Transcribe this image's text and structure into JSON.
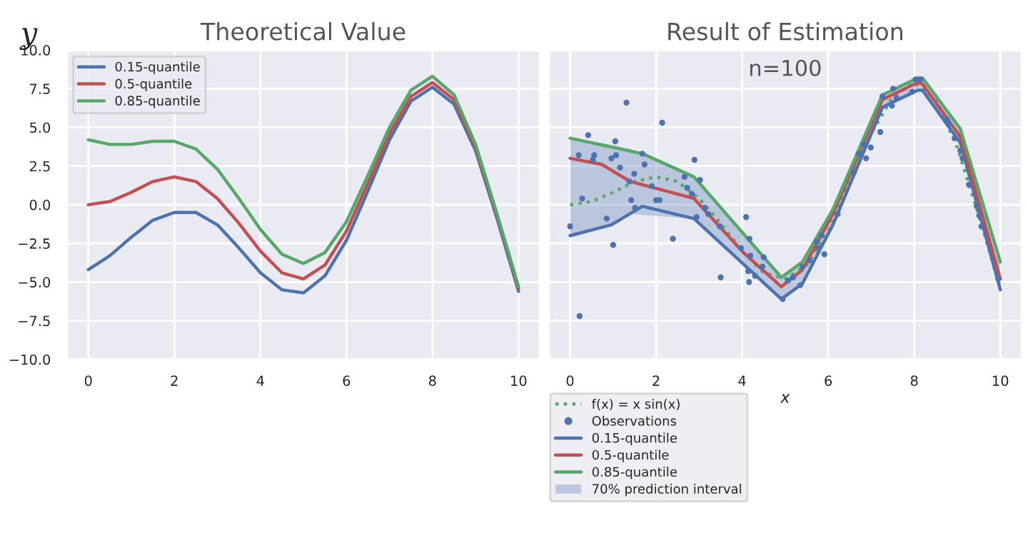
{
  "chart_data": [
    {
      "type": "line",
      "title": "Theoretical Value",
      "ylabel": "y",
      "x": [
        0,
        0.5,
        1,
        1.5,
        2,
        2.5,
        3,
        3.5,
        4,
        4.5,
        5,
        5.5,
        6,
        6.5,
        7,
        7.5,
        8,
        8.5,
        9,
        9.5,
        10
      ],
      "series": [
        {
          "name": "0.15-quantile",
          "color": "#4c72b0",
          "values": [
            -4.2,
            -3.3,
            -2.1,
            -1.0,
            -0.5,
            -0.5,
            -1.3,
            -2.8,
            -4.4,
            -5.5,
            -5.7,
            -4.6,
            -2.3,
            0.9,
            4.2,
            6.7,
            7.6,
            6.5,
            3.5,
            -0.9,
            -5.6
          ]
        },
        {
          "name": "0.5-quantile",
          "color": "#c44e52",
          "values": [
            0,
            0.2,
            0.8,
            1.5,
            1.8,
            1.5,
            0.4,
            -1.2,
            -3.0,
            -4.4,
            -4.8,
            -3.9,
            -1.7,
            1.4,
            4.6,
            7.0,
            7.9,
            6.8,
            3.7,
            -0.7,
            -5.4
          ]
        },
        {
          "name": "0.85-quantile",
          "color": "#55a868",
          "values": [
            4.2,
            3.9,
            3.9,
            4.1,
            4.1,
            3.6,
            2.3,
            0.4,
            -1.6,
            -3.2,
            -3.8,
            -3.1,
            -1.1,
            1.9,
            5.0,
            7.4,
            8.3,
            7.1,
            3.9,
            -0.6,
            -5.3
          ]
        }
      ],
      "xlim": [
        -0.5,
        10.5
      ],
      "xticks": [
        0,
        2,
        4,
        6,
        8,
        10
      ],
      "ylim": [
        -10,
        10
      ],
      "yticks": [
        {
          "value": -10,
          "label": "−10.0"
        },
        {
          "value": -7.5,
          "label": "−7.5"
        },
        {
          "value": -5,
          "label": "−5.0"
        },
        {
          "value": -2.5,
          "label": "−2.5"
        },
        {
          "value": 0,
          "label": "0.0"
        },
        {
          "value": 2.5,
          "label": "2.5"
        },
        {
          "value": 5,
          "label": "5.0"
        },
        {
          "value": 7.5,
          "label": "7.5"
        },
        {
          "value": 10,
          "label": "10.0"
        }
      ],
      "grid": true,
      "legend": "top left"
    },
    {
      "type": "line",
      "title": "Result of Estimation",
      "xlabel": "x",
      "annotations": [
        "n=100",
        "70% prediction interval"
      ],
      "series": [
        {
          "name": "f(x) = x sin(x)",
          "color": "#55a868",
          "line_style": "dotted",
          "x": [
            0,
            0.5,
            1,
            1.5,
            2,
            2.5,
            3,
            3.5,
            4,
            4.5,
            5,
            5.5,
            6,
            6.5,
            7,
            7.5,
            8,
            8.5,
            9,
            9.5,
            10
          ],
          "values": [
            0,
            0.2,
            0.8,
            1.5,
            1.8,
            1.5,
            0.4,
            -1.2,
            -3.0,
            -4.4,
            -4.8,
            -3.9,
            -1.7,
            1.4,
            4.6,
            7.0,
            7.9,
            6.8,
            3.7,
            -0.7,
            -5.4
          ]
        },
        {
          "name": "Observations",
          "type": "scatter",
          "color": "#4c72b0",
          "marker": "circle",
          "x": [
            0,
            0.2,
            0.22,
            0.28,
            0.42,
            0.53,
            0.56,
            0.85,
            0.96,
            1.0,
            1.05,
            1.07,
            1.16,
            1.31,
            1.38,
            1.42,
            1.49,
            1.51,
            1.68,
            1.73,
            1.9,
            2.0,
            2.08,
            2.14,
            2.39,
            2.66,
            2.72,
            2.83,
            2.89,
            2.94,
            3.02,
            3.13,
            3.21,
            3.48,
            3.5,
            3.97,
            4.09,
            4.14,
            4.16,
            4.17,
            4.19,
            4.3,
            4.47,
            4.5,
            4.94,
            5.07,
            5.18,
            5.35,
            5.4,
            5.56,
            5.73,
            5.78,
            5.84,
            5.91,
            6.22,
            6.6,
            6.71,
            6.82,
            6.88,
            6.99,
            7.21,
            7.26,
            7.48,
            7.51,
            7.59,
            7.95,
            8.03,
            8.14,
            8.76,
            8.8,
            8.94,
            9.07,
            9.12,
            9.27,
            9.45,
            9.51,
            9.56,
            9.95
          ],
          "values": [
            -1.4,
            3.2,
            -7.2,
            0.4,
            4.5,
            2.9,
            3.2,
            -0.9,
            3.0,
            -2.6,
            4.1,
            3.2,
            2.4,
            6.6,
            1.5,
            0.3,
            2.0,
            -0.2,
            3.3,
            2.6,
            1.2,
            0.3,
            0.3,
            5.3,
            -2.2,
            1.8,
            1.1,
            0.7,
            2.9,
            -0.8,
            1.6,
            -0.2,
            -0.6,
            -1.4,
            -4.7,
            -2.8,
            -0.8,
            -4.3,
            -5.0,
            -2.2,
            -3.3,
            -4.6,
            -4.0,
            -3.4,
            -6.1,
            -4.9,
            -4.7,
            -5.2,
            -4.0,
            -3.6,
            -2.4,
            -2.8,
            -2.0,
            -3.2,
            -0.6,
            2.1,
            3.3,
            3.9,
            3.0,
            3.7,
            4.7,
            7.0,
            6.4,
            7.5,
            6.9,
            7.3,
            8.1,
            8.1,
            5.5,
            5.2,
            4.3,
            3.5,
            3.0,
            1.3,
            -0.1,
            -0.7,
            -1.4,
            -4.8
          ]
        },
        {
          "name": "0.15-quantile",
          "color": "#4c72b0",
          "x": [
            0,
            0.96,
            1.68,
            2.88,
            4.91,
            5.4,
            6.11,
            7.26,
            8.08,
            8.19,
            9.07,
            10
          ],
          "values": [
            -2.0,
            -1.3,
            -0.1,
            -0.9,
            -6.1,
            -5.1,
            -1.3,
            6.3,
            7.4,
            7.4,
            4.0,
            -5.5
          ]
        },
        {
          "name": "0.5-quantile",
          "color": "#c44e52",
          "x": [
            0,
            0.74,
            1.4,
            2.88,
            4.03,
            4.91,
            5.4,
            6.11,
            7.26,
            8.08,
            8.19,
            9.07,
            10
          ],
          "values": [
            3.0,
            2.6,
            1.5,
            0.4,
            -3.1,
            -5.3,
            -4.2,
            -0.6,
            6.8,
            7.9,
            7.8,
            4.4,
            -4.8
          ],
          "lower": [
            -2.0,
            -1.5,
            -0.6,
            -0.9,
            -3.9,
            -6.1,
            -5.1,
            -1.3,
            6.3,
            7.4,
            7.4,
            4.0,
            -5.5
          ],
          "upper": [
            4.3,
            4.0,
            3.6,
            1.8,
            -1.9,
            -4.7,
            -3.7,
            -0.3,
            7.1,
            8.2,
            8.2,
            4.9,
            -3.7
          ]
        },
        {
          "name": "0.85-quantile",
          "color": "#55a868",
          "x": [
            0,
            1.68,
            2.88,
            4.91,
            5.4,
            6.11,
            7.26,
            8.08,
            8.19,
            9.07,
            10
          ],
          "values": [
            4.3,
            3.3,
            1.8,
            -4.7,
            -3.7,
            -0.3,
            7.1,
            8.2,
            8.2,
            4.9,
            -3.7
          ]
        }
      ],
      "xlim": [
        -0.5,
        10.5
      ],
      "xticks": [
        0,
        2,
        4,
        6,
        8,
        10
      ],
      "ylim": [
        -10,
        10
      ],
      "yticks": [
        -10,
        -7.5,
        -5,
        -2.5,
        0,
        2.5,
        5,
        7.5,
        10
      ],
      "tick_labels": "x",
      "grid": true,
      "legend": "bottom left"
    }
  ]
}
